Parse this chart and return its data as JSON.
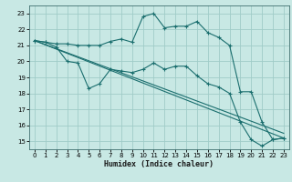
{
  "xlabel": "Humidex (Indice chaleur)",
  "bg_color": "#c8e8e4",
  "grid_color": "#a0ccc8",
  "line_color": "#1a6e6e",
  "xlim": [
    -0.5,
    23.5
  ],
  "ylim": [
    14.5,
    23.5
  ],
  "xticks": [
    0,
    1,
    2,
    3,
    4,
    5,
    6,
    7,
    8,
    9,
    10,
    11,
    12,
    13,
    14,
    15,
    16,
    17,
    18,
    19,
    20,
    21,
    22,
    23
  ],
  "yticks": [
    15,
    16,
    17,
    18,
    19,
    20,
    21,
    22,
    23
  ],
  "series_upper": {
    "x": [
      0,
      1,
      2,
      3,
      4,
      5,
      6,
      7,
      8,
      9,
      10,
      11,
      12,
      13,
      14,
      15,
      16,
      17,
      18,
      19,
      20,
      21,
      22,
      23
    ],
    "y": [
      21.3,
      21.2,
      21.1,
      21.1,
      21.0,
      21.0,
      21.0,
      21.25,
      21.4,
      21.2,
      22.8,
      23.0,
      22.1,
      22.2,
      22.2,
      22.5,
      21.8,
      21.5,
      21.0,
      18.1,
      18.1,
      16.2,
      15.1,
      15.2
    ]
  },
  "series_lower": {
    "x": [
      0,
      1,
      2,
      3,
      4,
      5,
      6,
      7,
      8,
      9,
      10,
      11,
      12,
      13,
      14,
      15,
      16,
      17,
      18,
      19,
      20,
      21,
      22,
      23
    ],
    "y": [
      21.3,
      21.2,
      20.9,
      20.0,
      19.9,
      18.3,
      18.6,
      19.5,
      19.4,
      19.3,
      19.5,
      19.9,
      19.5,
      19.7,
      19.7,
      19.1,
      18.6,
      18.4,
      18.0,
      16.2,
      15.1,
      14.7,
      15.1,
      15.2
    ]
  },
  "trend1": {
    "x": [
      0,
      23
    ],
    "y": [
      21.3,
      15.2
    ]
  },
  "trend2": {
    "x": [
      0,
      23
    ],
    "y": [
      21.3,
      15.5
    ]
  }
}
